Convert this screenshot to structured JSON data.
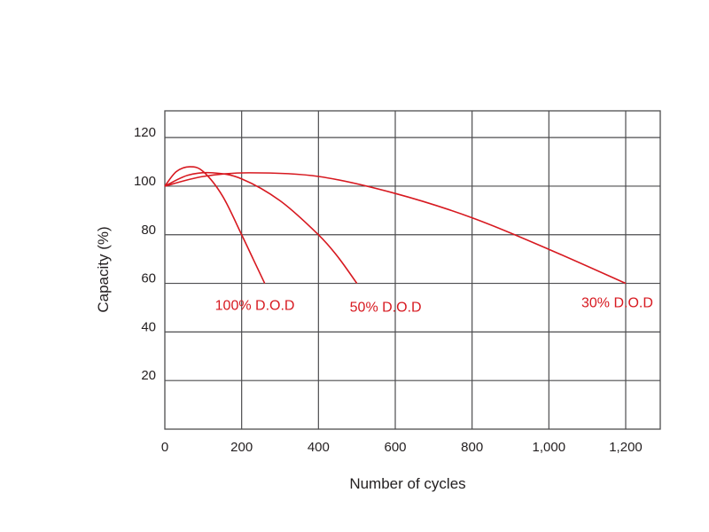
{
  "chart_data": {
    "type": "line",
    "title": "",
    "xlabel": "Number of cycles",
    "ylabel": "Capacity (%)",
    "xlim": [
      0,
      1290
    ],
    "ylim": [
      0,
      131
    ],
    "grid": true,
    "legend": "inline labels",
    "x_ticks": [
      {
        "value": 0,
        "label": "0"
      },
      {
        "value": 200,
        "label": "200"
      },
      {
        "value": 400,
        "label": "400"
      },
      {
        "value": 600,
        "label": "600"
      },
      {
        "value": 800,
        "label": "800"
      },
      {
        "value": 1000,
        "label": "1,000"
      },
      {
        "value": 1200,
        "label": "1,200"
      }
    ],
    "y_ticks": [
      {
        "value": 20,
        "label": "20"
      },
      {
        "value": 40,
        "label": "40"
      },
      {
        "value": 60,
        "label": "60"
      },
      {
        "value": 80,
        "label": "80"
      },
      {
        "value": 100,
        "label": "100"
      },
      {
        "value": 120,
        "label": "120"
      }
    ],
    "series_color": "#d71920",
    "series": [
      {
        "name": "100% D.O.D",
        "x": [
          0,
          30,
          65,
          100,
          150,
          200,
          230,
          260
        ],
        "y": [
          100,
          106,
          108,
          106,
          96,
          80,
          70,
          60
        ]
      },
      {
        "name": "50% D.O.D",
        "x": [
          0,
          60,
          125,
          200,
          300,
          400,
          450,
          500
        ],
        "y": [
          100,
          104.5,
          105.5,
          103,
          94,
          80,
          71,
          60
        ]
      },
      {
        "name": "30% D.O.D",
        "x": [
          0,
          100,
          220,
          400,
          600,
          800,
          1000,
          1200
        ],
        "y": [
          100,
          104,
          105.5,
          104,
          97,
          87,
          74,
          60
        ]
      }
    ],
    "annotations": [
      {
        "text": "100% D.O.D",
        "x": 260,
        "y": 52
      },
      {
        "text": "50% D.O.D",
        "x": 500,
        "y": 52
      },
      {
        "text": "30% D.O.D",
        "x": 1200,
        "y": 53
      }
    ]
  }
}
